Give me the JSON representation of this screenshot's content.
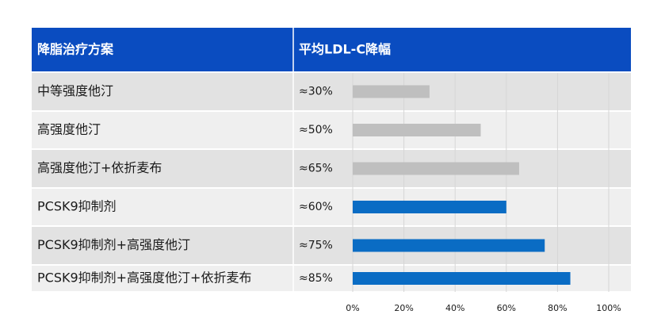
{
  "chart_data": {
    "type": "bar",
    "orientation": "horizontal",
    "column_headers": [
      "降脂治疗方案",
      "平均LDL-C降幅"
    ],
    "categories": [
      "中等强度他汀",
      "高强度他汀",
      "高强度他汀+依折麦布",
      "PCSK9抑制剂",
      "PCSK9抑制剂+高强度他汀",
      "PCSK9抑制剂+高强度他汀+依折麦布"
    ],
    "values": [
      30,
      50,
      65,
      60,
      75,
      85
    ],
    "value_labels": [
      "≈30%",
      "≈50%",
      "≈65%",
      "≈60%",
      "≈75%",
      "≈85%"
    ],
    "colors": [
      "#bfbfbf",
      "#bfbfbf",
      "#bfbfbf",
      "#0a6cc4",
      "#0a6cc4",
      "#0a6cc4"
    ],
    "xlim": [
      0,
      100
    ],
    "xticks": [
      {
        "value": 0,
        "label": "0%"
      },
      {
        "value": 20,
        "label": "20%"
      },
      {
        "value": 40,
        "label": "40%"
      },
      {
        "value": 60,
        "label": "60%"
      },
      {
        "value": 80,
        "label": "80%"
      },
      {
        "value": 100,
        "label": "100%"
      }
    ],
    "grid": true
  }
}
